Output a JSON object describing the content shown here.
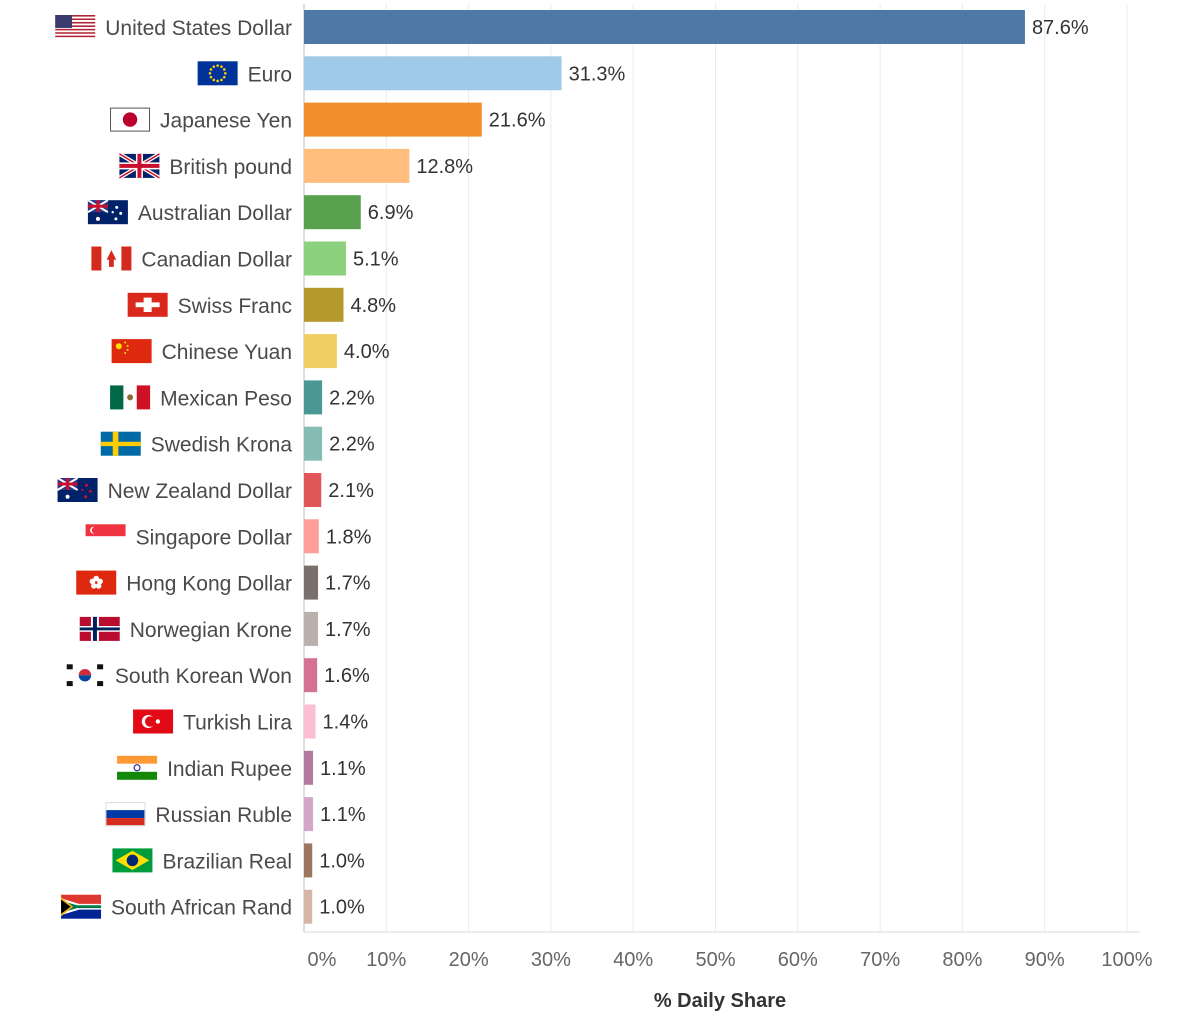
{
  "chart_data": {
    "type": "bar",
    "orientation": "horizontal",
    "categories": [
      "United States Dollar",
      "Euro",
      "Japanese Yen",
      "British pound",
      "Australian Dollar",
      "Canadian Dollar",
      "Swiss Franc",
      "Chinese Yuan",
      "Mexican Peso",
      "Swedish Krona",
      "New Zealand Dollar",
      "Singapore Dollar",
      "Hong Kong Dollar",
      "Norwegian Krone",
      "South Korean Won",
      "Turkish Lira",
      "Indian Rupee",
      "Russian Ruble",
      "Brazilian Real",
      "South African Rand"
    ],
    "values": [
      87.6,
      31.3,
      21.6,
      12.8,
      6.9,
      5.1,
      4.8,
      4.0,
      2.2,
      2.2,
      2.1,
      1.8,
      1.7,
      1.7,
      1.6,
      1.4,
      1.1,
      1.1,
      1.0,
      1.0
    ],
    "value_labels": [
      "87.6%",
      "31.3%",
      "21.6%",
      "12.8%",
      "6.9%",
      "5.1%",
      "4.8%",
      "4.0%",
      "2.2%",
      "2.2%",
      "2.1%",
      "1.8%",
      "1.7%",
      "1.7%",
      "1.6%",
      "1.4%",
      "1.1%",
      "1.1%",
      "1.0%",
      "1.0%"
    ],
    "bar_colors": [
      "#4e79a7",
      "#a0cbe8",
      "#f28e2b",
      "#ffbe7d",
      "#59a14f",
      "#8cd17d",
      "#b6992d",
      "#f1ce63",
      "#499894",
      "#86bcb6",
      "#e15759",
      "#ff9d9a",
      "#79706e",
      "#bab0ac",
      "#d37295",
      "#fabfd2",
      "#b07aa1",
      "#d4a6c8",
      "#9d7660",
      "#d7b5a6"
    ],
    "flag_icons": [
      "flag-us-icon",
      "flag-eu-icon",
      "flag-jp-icon",
      "flag-uk-icon",
      "flag-au-icon",
      "flag-ca-icon",
      "flag-ch-icon",
      "flag-cn-icon",
      "flag-mx-icon",
      "flag-se-icon",
      "flag-nz-icon",
      "flag-sg-icon",
      "flag-hk-icon",
      "flag-no-icon",
      "flag-kr-icon",
      "flag-tr-icon",
      "flag-in-icon",
      "flag-ru-icon",
      "flag-br-icon",
      "flag-za-icon"
    ],
    "x_ticks": [
      0,
      10,
      20,
      30,
      40,
      50,
      60,
      70,
      80,
      90,
      100
    ],
    "x_tick_labels": [
      "0%",
      "10%",
      "20%",
      "30%",
      "40%",
      "50%",
      "60%",
      "70%",
      "80%",
      "90%",
      "100%"
    ],
    "xlim": [
      0,
      100
    ],
    "xlabel": "% Daily Share",
    "grid": true
  }
}
